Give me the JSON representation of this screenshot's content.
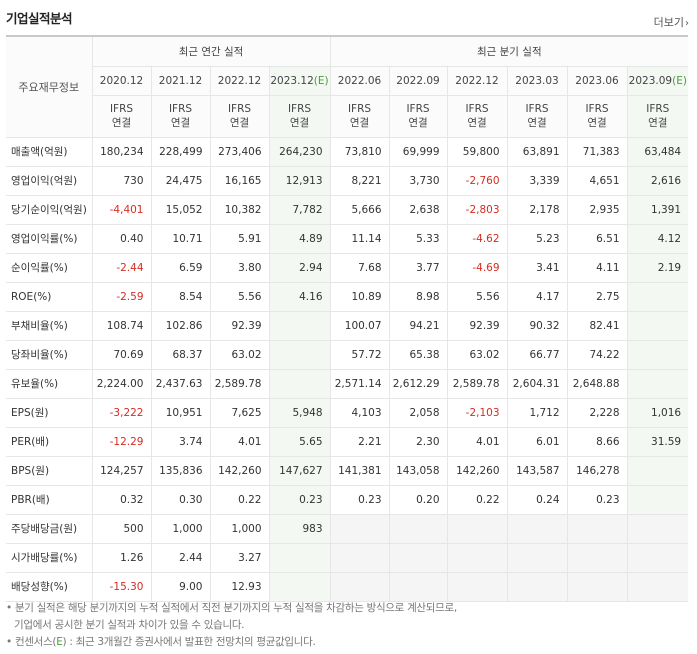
{
  "header": {
    "title": "기업실적분석",
    "more": "더보기"
  },
  "table": {
    "corner": "주요재무정보",
    "annual_group": "최근 연간 실적",
    "quarter_group": "최근 분기 실적",
    "periods": [
      {
        "label": "2020.12",
        "est": false
      },
      {
        "label": "2021.12",
        "est": false
      },
      {
        "label": "2022.12",
        "est": false
      },
      {
        "label": "2023.12",
        "est": true,
        "suffix": "(E)"
      },
      {
        "label": "2022.06",
        "est": false
      },
      {
        "label": "2022.09",
        "est": false
      },
      {
        "label": "2022.12",
        "est": false
      },
      {
        "label": "2023.03",
        "est": false
      },
      {
        "label": "2023.06",
        "est": false
      },
      {
        "label": "2023.09",
        "est": true,
        "suffix": "(E)"
      }
    ],
    "standard_top": "IFRS",
    "standard_bottom": "연결",
    "rows": [
      {
        "label": "매출액(억원)",
        "values": [
          "180,234",
          "228,499",
          "273,406",
          "264,230",
          "73,810",
          "69,999",
          "59,800",
          "63,891",
          "71,383",
          "63,484"
        ]
      },
      {
        "label": "영업이익(억원)",
        "values": [
          "730",
          "24,475",
          "16,165",
          "12,913",
          "8,221",
          "3,730",
          "-2,760",
          "3,339",
          "4,651",
          "2,616"
        ]
      },
      {
        "label": "당기순이익(억원)",
        "values": [
          "-4,401",
          "15,052",
          "10,382",
          "7,782",
          "5,666",
          "2,638",
          "-2,803",
          "2,178",
          "2,935",
          "1,391"
        ]
      },
      {
        "label": "영업이익률(%)",
        "sep": true,
        "values": [
          "0.40",
          "10.71",
          "5.91",
          "4.89",
          "11.14",
          "5.33",
          "-4.62",
          "5.23",
          "6.51",
          "4.12"
        ]
      },
      {
        "label": "순이익률(%)",
        "values": [
          "-2.44",
          "6.59",
          "3.80",
          "2.94",
          "7.68",
          "3.77",
          "-4.69",
          "3.41",
          "4.11",
          "2.19"
        ]
      },
      {
        "label": "ROE(%)",
        "values": [
          "-2.59",
          "8.54",
          "5.56",
          "4.16",
          "10.89",
          "8.98",
          "5.56",
          "4.17",
          "2.75",
          ""
        ]
      },
      {
        "label": "부채비율(%)",
        "sep": true,
        "values": [
          "108.74",
          "102.86",
          "92.39",
          "",
          "100.07",
          "94.21",
          "92.39",
          "90.32",
          "82.41",
          ""
        ]
      },
      {
        "label": "당좌비율(%)",
        "values": [
          "70.69",
          "68.37",
          "63.02",
          "",
          "57.72",
          "65.38",
          "63.02",
          "66.77",
          "74.22",
          ""
        ]
      },
      {
        "label": "유보율(%)",
        "values": [
          "2,224.00",
          "2,437.63",
          "2,589.78",
          "",
          "2,571.14",
          "2,612.29",
          "2,589.78",
          "2,604.31",
          "2,648.88",
          ""
        ]
      },
      {
        "label": "EPS(원)",
        "sep": true,
        "values": [
          "-3,222",
          "10,951",
          "7,625",
          "5,948",
          "4,103",
          "2,058",
          "-2,103",
          "1,712",
          "2,228",
          "1,016"
        ]
      },
      {
        "label": "PER(배)",
        "values": [
          "-12.29",
          "3.74",
          "4.01",
          "5.65",
          "2.21",
          "2.30",
          "4.01",
          "6.01",
          "8.66",
          "31.59"
        ]
      },
      {
        "label": "BPS(원)",
        "values": [
          "124,257",
          "135,836",
          "142,260",
          "147,627",
          "141,381",
          "143,058",
          "142,260",
          "143,587",
          "146,278",
          ""
        ]
      },
      {
        "label": "PBR(배)",
        "values": [
          "0.32",
          "0.30",
          "0.22",
          "0.23",
          "0.23",
          "0.20",
          "0.22",
          "0.24",
          "0.23",
          ""
        ]
      },
      {
        "label": "주당배당금(원)",
        "sep": true,
        "values": [
          "500",
          "1,000",
          "1,000",
          "983",
          "",
          "",
          "",
          "",
          "",
          ""
        ]
      },
      {
        "label": "시가배당률(%)",
        "values": [
          "1.26",
          "2.44",
          "3.27",
          "",
          "",
          "",
          "",
          "",
          "",
          ""
        ]
      },
      {
        "label": "배당성향(%)",
        "values": [
          "-15.30",
          "9.00",
          "12.93",
          "",
          "",
          "",
          "",
          "",
          "",
          ""
        ]
      }
    ]
  },
  "notes": {
    "line1": "분기 실적은 해당 분기까지의 누적 실적에서 직전 분기까지의 누적 실적을 차감하는 방식으로 계산되므로,",
    "line2": "기업에서 공시한 분기 실적과 차이가 있을 수 있습니다.",
    "line3_pre": "컨센서스(",
    "line3_e": "E",
    "line3_post": ") : 최근 3개월간 증권사에서 발표한 전망치의 평균값입니다."
  },
  "colors": {
    "negative": "#d52d23",
    "standard": "#e16a1b",
    "estimate": "#4a9e3d",
    "estimate_bg": "#f3f8f3",
    "blank_bg": "#f5f5f5"
  }
}
